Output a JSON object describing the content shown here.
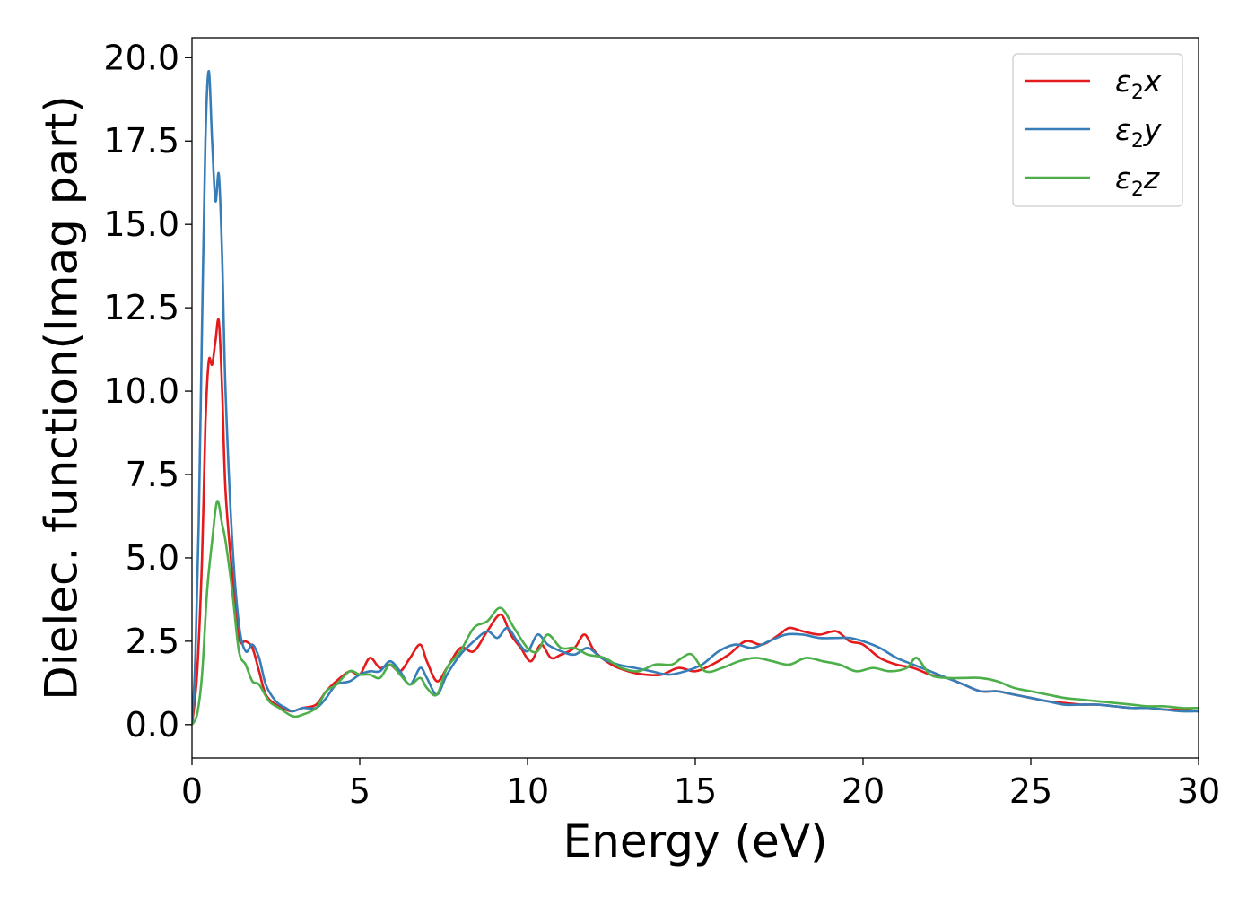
{
  "chart_data": {
    "type": "line",
    "xlabel": "Energy (eV)",
    "ylabel": "Dielec. function(Imag part)",
    "xlim": [
      0,
      30
    ],
    "ylim": [
      -1.0,
      20.6
    ],
    "xticks": [
      0,
      5,
      10,
      15,
      20,
      25,
      30
    ],
    "xtick_labels": [
      "0",
      "5",
      "10",
      "15",
      "20",
      "25",
      "30"
    ],
    "yticks": [
      0,
      2.5,
      5,
      7.5,
      10,
      12.5,
      15,
      17.5,
      20
    ],
    "ytick_labels": [
      "0.0",
      "2.5",
      "5.0",
      "7.5",
      "10.0",
      "12.5",
      "15.0",
      "17.5",
      "20.0"
    ],
    "grid": false,
    "legend_position": "top-right",
    "series": [
      {
        "name": "ε2x",
        "legend_base": "ε",
        "legend_sub": "2",
        "legend_var": "x",
        "color": "#e41a1c",
        "x": [
          0.0,
          0.15,
          0.3,
          0.4,
          0.5,
          0.6,
          0.7,
          0.8,
          0.9,
          1.0,
          1.2,
          1.4,
          1.6,
          1.8,
          2.0,
          2.2,
          2.5,
          2.8,
          3.0,
          3.3,
          3.7,
          4.0,
          4.3,
          4.7,
          5.0,
          5.3,
          5.6,
          5.9,
          6.2,
          6.5,
          6.8,
          7.0,
          7.3,
          7.6,
          8.0,
          8.4,
          8.8,
          9.2,
          9.5,
          9.8,
          10.1,
          10.4,
          10.7,
          11.0,
          11.4,
          11.7,
          12.0,
          12.5,
          13.0,
          13.5,
          14.0,
          14.5,
          15.0,
          15.5,
          16.0,
          16.5,
          17.0,
          17.5,
          17.8,
          18.2,
          18.7,
          19.2,
          19.6,
          20.0,
          20.5,
          21.0,
          21.5,
          22.0,
          22.5,
          23.0,
          23.5,
          24.0,
          24.5,
          25.0,
          25.5,
          26.0,
          26.5,
          27.0,
          27.5,
          28.0,
          28.5,
          29.0,
          29.5,
          30.0
        ],
        "y": [
          0.0,
          1.5,
          5.0,
          9.0,
          10.9,
          10.8,
          11.5,
          12.1,
          10.0,
          7.0,
          4.5,
          2.6,
          2.5,
          2.3,
          1.6,
          0.9,
          0.6,
          0.45,
          0.4,
          0.5,
          0.6,
          1.0,
          1.3,
          1.6,
          1.5,
          2.0,
          1.7,
          1.8,
          1.6,
          2.0,
          2.4,
          1.9,
          1.3,
          1.7,
          2.3,
          2.2,
          2.8,
          3.3,
          2.7,
          2.3,
          1.9,
          2.4,
          2.0,
          2.1,
          2.3,
          2.7,
          2.2,
          1.8,
          1.6,
          1.5,
          1.5,
          1.7,
          1.6,
          1.8,
          2.1,
          2.5,
          2.4,
          2.7,
          2.9,
          2.8,
          2.7,
          2.8,
          2.5,
          2.4,
          2.0,
          1.8,
          1.7,
          1.5,
          1.4,
          1.2,
          1.0,
          1.0,
          0.9,
          0.8,
          0.7,
          0.65,
          0.6,
          0.6,
          0.55,
          0.5,
          0.5,
          0.45,
          0.45,
          0.4
        ]
      },
      {
        "name": "ε2y",
        "legend_base": "ε",
        "legend_sub": "2",
        "legend_var": "y",
        "color": "#377eb8",
        "x": [
          0.0,
          0.1,
          0.2,
          0.3,
          0.4,
          0.5,
          0.6,
          0.7,
          0.8,
          0.9,
          1.0,
          1.2,
          1.4,
          1.6,
          1.8,
          2.0,
          2.2,
          2.5,
          2.8,
          3.0,
          3.3,
          3.7,
          4.0,
          4.3,
          4.7,
          5.0,
          5.3,
          5.6,
          5.9,
          6.2,
          6.5,
          6.8,
          7.0,
          7.3,
          7.6,
          8.0,
          8.4,
          8.8,
          9.1,
          9.4,
          9.7,
          10.0,
          10.3,
          10.6,
          11.0,
          11.4,
          11.8,
          12.2,
          12.7,
          13.2,
          13.7,
          14.2,
          14.7,
          15.2,
          15.7,
          16.2,
          16.7,
          17.2,
          17.7,
          18.2,
          18.7,
          19.2,
          19.6,
          20.0,
          20.5,
          21.0,
          21.5,
          22.0,
          22.5,
          23.0,
          23.5,
          24.0,
          24.5,
          25.0,
          25.5,
          26.0,
          26.5,
          27.0,
          27.5,
          28.0,
          28.5,
          29.0,
          29.5,
          30.0
        ],
        "y": [
          0.0,
          2.0,
          6.0,
          12.0,
          17.5,
          19.6,
          17.5,
          15.7,
          16.5,
          14.0,
          10.0,
          5.5,
          3.0,
          2.2,
          2.4,
          2.0,
          1.2,
          0.7,
          0.5,
          0.4,
          0.5,
          0.5,
          0.8,
          1.2,
          1.3,
          1.5,
          1.6,
          1.6,
          1.9,
          1.6,
          1.2,
          1.7,
          1.4,
          0.9,
          1.5,
          2.1,
          2.5,
          2.8,
          2.6,
          2.9,
          2.5,
          2.2,
          2.7,
          2.4,
          2.2,
          2.1,
          2.3,
          2.0,
          1.8,
          1.7,
          1.6,
          1.5,
          1.6,
          1.8,
          2.2,
          2.4,
          2.3,
          2.5,
          2.7,
          2.7,
          2.6,
          2.6,
          2.6,
          2.5,
          2.3,
          2.0,
          1.8,
          1.6,
          1.4,
          1.2,
          1.0,
          1.0,
          0.9,
          0.8,
          0.7,
          0.6,
          0.6,
          0.6,
          0.55,
          0.5,
          0.5,
          0.45,
          0.4,
          0.4
        ]
      },
      {
        "name": "ε2z",
        "legend_base": "ε",
        "legend_sub": "2",
        "legend_var": "z",
        "color": "#4daf4a",
        "x": [
          0.0,
          0.15,
          0.3,
          0.45,
          0.6,
          0.75,
          0.9,
          1.0,
          1.2,
          1.4,
          1.6,
          1.8,
          2.0,
          2.3,
          2.6,
          3.0,
          3.3,
          3.7,
          4.0,
          4.3,
          4.7,
          5.0,
          5.3,
          5.6,
          5.9,
          6.2,
          6.5,
          6.8,
          7.0,
          7.3,
          7.6,
          8.0,
          8.4,
          8.8,
          9.2,
          9.6,
          10.0,
          10.3,
          10.6,
          11.0,
          11.4,
          11.8,
          12.3,
          12.8,
          13.3,
          13.8,
          14.3,
          14.6,
          14.9,
          15.3,
          15.8,
          16.3,
          16.8,
          17.3,
          17.8,
          18.3,
          18.8,
          19.3,
          19.8,
          20.3,
          20.8,
          21.3,
          21.6,
          22.0,
          22.5,
          23.0,
          23.5,
          24.0,
          24.5,
          25.0,
          25.5,
          26.0,
          26.5,
          27.0,
          27.5,
          28.0,
          28.5,
          29.0,
          29.5,
          30.0
        ],
        "y": [
          0.0,
          0.3,
          1.5,
          4.0,
          5.5,
          6.7,
          6.0,
          5.5,
          4.0,
          2.2,
          1.8,
          1.3,
          1.2,
          0.7,
          0.5,
          0.25,
          0.3,
          0.5,
          1.0,
          1.2,
          1.6,
          1.5,
          1.5,
          1.4,
          1.8,
          1.5,
          1.2,
          1.4,
          1.1,
          0.9,
          1.7,
          2.2,
          2.9,
          3.1,
          3.5,
          2.9,
          2.3,
          2.2,
          2.7,
          2.3,
          2.3,
          2.1,
          2.0,
          1.7,
          1.6,
          1.8,
          1.8,
          2.0,
          2.1,
          1.6,
          1.7,
          1.9,
          2.0,
          1.9,
          1.8,
          2.0,
          1.9,
          1.8,
          1.6,
          1.7,
          1.6,
          1.7,
          2.0,
          1.5,
          1.4,
          1.4,
          1.4,
          1.3,
          1.1,
          1.0,
          0.9,
          0.8,
          0.75,
          0.7,
          0.65,
          0.6,
          0.55,
          0.55,
          0.5,
          0.5
        ]
      }
    ]
  }
}
